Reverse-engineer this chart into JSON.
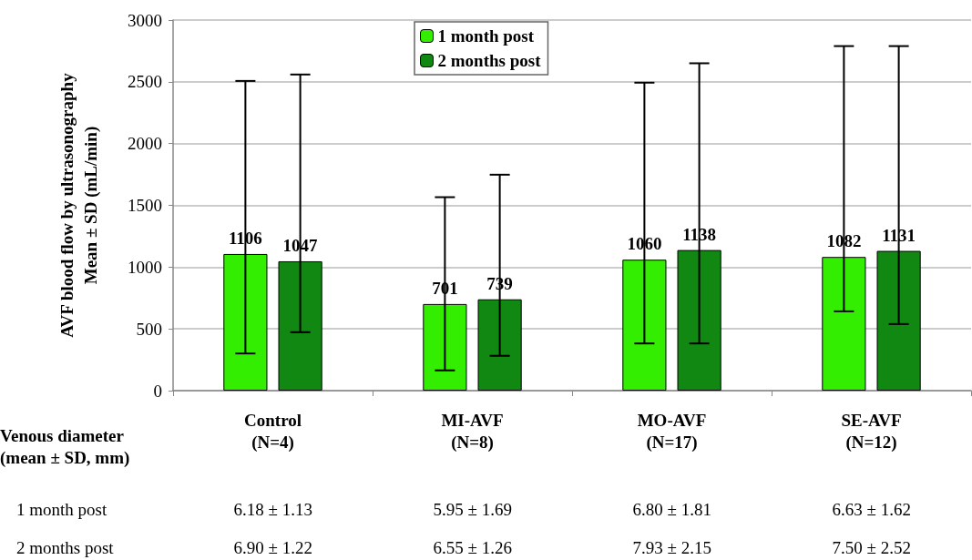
{
  "chart_data": {
    "type": "bar",
    "ylabel": "AVF blood flow by ultrasonography\nMean ± SD (mL/min)",
    "categories": [
      "Control\n(N=4)",
      "MI-AVF\n(N=8)",
      "MO-AVF\n(N=17)",
      "SE-AVF\n(N=12)"
    ],
    "series": [
      {
        "name": "1 month post",
        "color": "#33ee00",
        "values": [
          1106,
          701,
          1060,
          1082
        ],
        "errors": [
          [
            301,
            2507
          ],
          [
            164,
            1566
          ],
          [
            382,
            2493
          ],
          [
            642,
            2789
          ]
        ]
      },
      {
        "name": "2 months post",
        "color": "#118811",
        "values": [
          1047,
          739,
          1138,
          1131
        ],
        "errors": [
          [
            473,
            2559
          ],
          [
            282,
            1748
          ],
          [
            382,
            2650
          ],
          [
            539,
            2789
          ]
        ]
      }
    ],
    "ylim": [
      0,
      3000
    ],
    "yticks": [
      0,
      500,
      1000,
      1500,
      2000,
      2500,
      3000
    ],
    "grid": "y",
    "legend": "top",
    "data_labels": true,
    "annotations": [
      "Venous diameter\n(mean ± SD, mm)",
      "1 month post",
      "6.18 ± 1.13",
      "5.95 ± 1.69",
      "6.80 ± 1.81",
      "6.63 ± 1.62",
      "2 months post",
      "6.90 ± 1.22",
      "6.55 ± 1.26",
      "7.93 ± 2.15",
      "7.50 ± 2.52"
    ]
  }
}
